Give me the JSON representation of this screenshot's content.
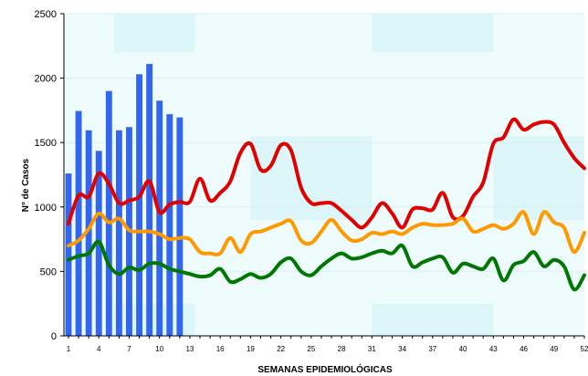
{
  "chart_data": {
    "type": "line",
    "xlabel": "SEMANAS EPIDEMIOLÓGICAS",
    "ylabel": "N° de Casos",
    "xlim": [
      1,
      52
    ],
    "ylim": [
      0,
      2500
    ],
    "yticks": [
      0,
      500,
      1000,
      1500,
      2000,
      2500
    ],
    "xticks": [
      1,
      4,
      7,
      10,
      13,
      16,
      19,
      22,
      25,
      28,
      31,
      34,
      37,
      40,
      43,
      46,
      49,
      52
    ],
    "xtick_labels": [
      "1",
      "4",
      "7",
      "10",
      "13",
      "16",
      "19",
      "22",
      "25",
      "28",
      "31",
      "34",
      "37",
      "40",
      "43",
      "46",
      "49",
      "52"
    ],
    "bars": {
      "color": "#3366ee",
      "x": [
        1,
        2,
        3,
        4,
        5,
        6,
        7,
        8,
        9,
        10,
        11,
        12
      ],
      "values": [
        1260,
        1745,
        1595,
        1435,
        1900,
        1595,
        1620,
        2030,
        2110,
        1825,
        1720,
        1695
      ]
    },
    "series": [
      {
        "color": "#e00000",
        "x": [
          1,
          2,
          3,
          4,
          5,
          6,
          7,
          8,
          9,
          10,
          11,
          12,
          13,
          14,
          15,
          16,
          17,
          18,
          19,
          20,
          21,
          22,
          23,
          24,
          25,
          26,
          27,
          28,
          29,
          30,
          31,
          32,
          33,
          34,
          35,
          36,
          37,
          38,
          39,
          40,
          41,
          42,
          43,
          44,
          45,
          46,
          47,
          48,
          49,
          50,
          51,
          52
        ],
        "values": [
          870,
          1090,
          1080,
          1260,
          1180,
          1030,
          1050,
          1080,
          1200,
          960,
          1020,
          1040,
          1040,
          1220,
          1050,
          1110,
          1200,
          1420,
          1490,
          1290,
          1320,
          1480,
          1440,
          1150,
          1030,
          1030,
          1030,
          970,
          900,
          840,
          920,
          1030,
          950,
          840,
          980,
          990,
          980,
          1110,
          920,
          930,
          1080,
          1190,
          1490,
          1540,
          1680,
          1600,
          1640,
          1660,
          1640,
          1500,
          1380,
          1300
        ]
      },
      {
        "color": "#ff9900",
        "x": [
          1,
          2,
          3,
          4,
          5,
          6,
          7,
          8,
          9,
          10,
          11,
          12,
          13,
          14,
          15,
          16,
          17,
          18,
          19,
          20,
          21,
          22,
          23,
          24,
          25,
          26,
          27,
          28,
          29,
          30,
          31,
          32,
          33,
          34,
          35,
          36,
          37,
          38,
          39,
          40,
          41,
          42,
          43,
          44,
          45,
          46,
          47,
          48,
          49,
          50,
          51,
          52
        ],
        "values": [
          700,
          740,
          830,
          950,
          880,
          910,
          820,
          810,
          810,
          790,
          750,
          760,
          750,
          650,
          640,
          640,
          760,
          650,
          790,
          810,
          840,
          870,
          890,
          740,
          720,
          810,
          900,
          810,
          740,
          750,
          800,
          790,
          810,
          790,
          840,
          870,
          860,
          860,
          870,
          910,
          810,
          830,
          860,
          830,
          870,
          960,
          790,
          960,
          880,
          840,
          650,
          800
        ]
      },
      {
        "color": "#007700",
        "x": [
          1,
          2,
          3,
          4,
          5,
          6,
          7,
          8,
          9,
          10,
          11,
          12,
          13,
          14,
          15,
          16,
          17,
          18,
          19,
          20,
          21,
          22,
          23,
          24,
          25,
          26,
          27,
          28,
          29,
          30,
          31,
          32,
          33,
          34,
          35,
          36,
          37,
          38,
          39,
          40,
          41,
          42,
          43,
          44,
          45,
          46,
          47,
          48,
          49,
          50,
          51,
          52
        ],
        "values": [
          590,
          620,
          640,
          730,
          550,
          480,
          530,
          510,
          560,
          560,
          520,
          500,
          480,
          460,
          470,
          520,
          420,
          440,
          480,
          450,
          480,
          570,
          600,
          500,
          470,
          540,
          600,
          640,
          600,
          610,
          640,
          660,
          640,
          700,
          540,
          570,
          600,
          610,
          490,
          560,
          540,
          520,
          600,
          430,
          550,
          580,
          650,
          540,
          590,
          540,
          360,
          470
        ]
      }
    ]
  }
}
